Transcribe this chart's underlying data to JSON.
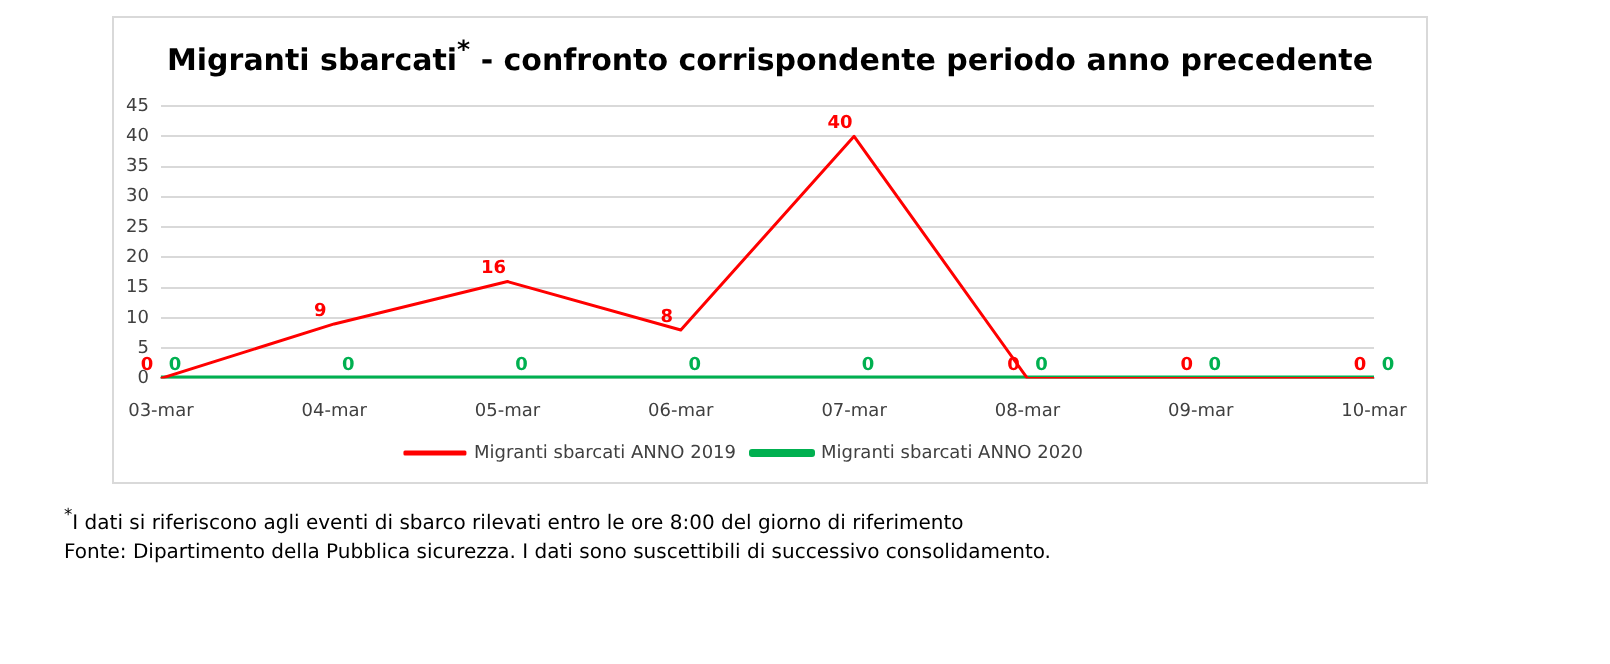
{
  "chart_data": {
    "type": "line",
    "title": "Migranti sbarcati$^{*}$ - confronto corrispondente periodo anno precedente",
    "categories": [
      "03-mar",
      "04-mar",
      "05-mar",
      "06-mar",
      "07-mar",
      "08-mar",
      "09-mar",
      "10-mar"
    ],
    "series": [
      {
        "name": "Migranti sbarcati ANNO 2019",
        "color": "#ff0000",
        "values": [
          0,
          9,
          16,
          8,
          40,
          0,
          0,
          0
        ]
      },
      {
        "name": "Migranti sbarcati ANNO 2020",
        "color": "#00b050",
        "values": [
          0,
          0,
          0,
          0,
          0,
          0,
          0,
          0
        ]
      }
    ],
    "ylim": [
      0,
      45
    ],
    "yticks": [
      0,
      5,
      10,
      15,
      20,
      25,
      30,
      35,
      40,
      45
    ],
    "grid": "y",
    "legend": "bottom",
    "marker": "none",
    "line_style": "solid",
    "data_labels": true,
    "annotations": [
      "$^{*}$I dati si riferiscono agli eventi di sbarco rilevati entro le ore 8:00 del giorno di riferimento",
      "Fonte: Dipartimento della Pubblica sicurezza. I dati sono suscettibili di successivo consolidamento."
    ]
  }
}
